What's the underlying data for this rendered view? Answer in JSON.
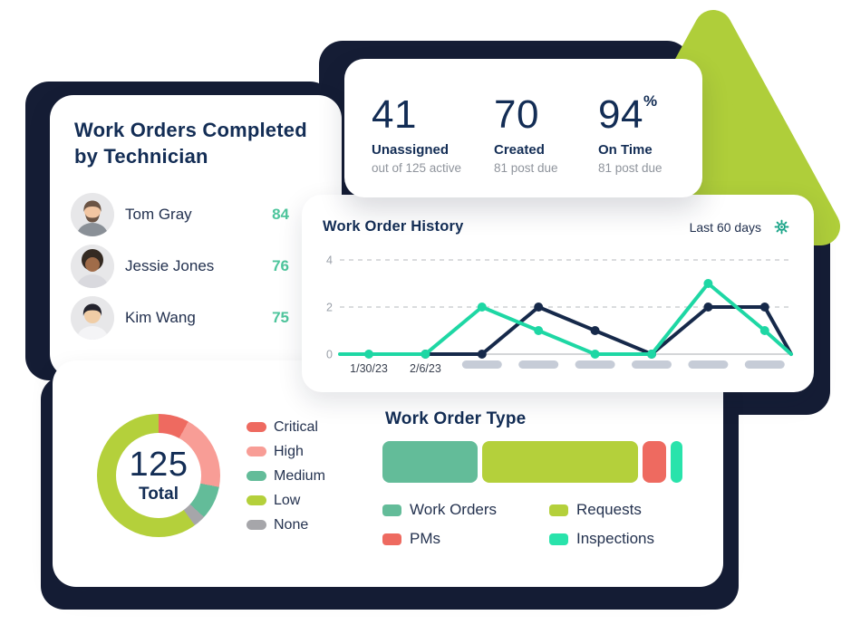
{
  "page": {
    "background": "#ffffff"
  },
  "colors": {
    "navy_text": "#132d55",
    "navy_shape": "#151d35",
    "lime": "#afce3a",
    "teal_line": "#1ed7a4",
    "navy_line": "#16294a",
    "green_value": "#4ec59c",
    "gear_teal": "#16a386"
  },
  "technician_card": {
    "title": "Work Orders Completed by Technician",
    "rows": [
      {
        "name": "Tom Gray",
        "value": "84",
        "avatar": "avatar-tom-gray"
      },
      {
        "name": "Jessie Jones",
        "value": "76",
        "avatar": "avatar-jessie-jones"
      },
      {
        "name": "Kim Wang",
        "value": "75",
        "avatar": "avatar-kim-wang"
      }
    ]
  },
  "stats_card": {
    "stats": [
      {
        "value": "41",
        "suffix": "",
        "label": "Unassigned",
        "sub": "out of 125 active"
      },
      {
        "value": "70",
        "suffix": "",
        "label": "Created",
        "sub": "81 post due"
      },
      {
        "value": "94",
        "suffix": "%",
        "label": "On Time",
        "sub": "81 post due"
      }
    ]
  },
  "history_card": {
    "range_label": "Last 60 days"
  },
  "chart_data": [
    {
      "type": "line",
      "title": "Work Order History",
      "x_labels": [
        "1/30/23",
        "2/6/23",
        "",
        "",
        "",
        "",
        "",
        ""
      ],
      "placeholder_tick_indices": [
        2,
        3,
        4,
        5,
        6,
        7
      ],
      "yticks": [
        0,
        2,
        4
      ],
      "ylim": [
        0,
        4
      ],
      "grid": "dashed-horizontal",
      "series": [
        {
          "name": "series-navy",
          "color": "#16294a",
          "values": [
            null,
            0,
            0,
            2,
            1,
            0,
            2,
            2,
            0
          ]
        },
        {
          "name": "series-teal",
          "color": "#1ed7a4",
          "values": [
            0,
            0,
            2,
            1,
            0,
            0,
            3,
            1,
            0
          ]
        }
      ],
      "pill_color": "#c6ccd7",
      "axis_color": "#c6c8cc",
      "gridline_color": "#cdd0d4",
      "ytick_label_color": "#9aa0a9",
      "xtick_label_color": "#39404f"
    },
    {
      "type": "pie",
      "subtype": "donut",
      "center_value": "125",
      "center_label": "Total",
      "slices": [
        {
          "label": "Critical",
          "value": 10,
          "color": "#ee6a60"
        },
        {
          "label": "High",
          "value": 25,
          "color": "#f89d96"
        },
        {
          "label": "Medium",
          "value": 11,
          "color": "#63bc99"
        },
        {
          "label": "None",
          "value": 4,
          "color": "#a6a6aa"
        },
        {
          "label": "Low",
          "value": 75,
          "color": "#b4d03b"
        }
      ],
      "legend_order": [
        "Critical",
        "High",
        "Medium",
        "Low",
        "None"
      ],
      "legend_position": "right"
    },
    {
      "type": "bar",
      "subtype": "stacked-horizontal",
      "title": "Work Order Type",
      "segments": [
        {
          "label": "Work Orders",
          "value": 40,
          "color": "#63bc99"
        },
        {
          "label": "Requests",
          "value": 65,
          "color": "#b4d03b"
        },
        {
          "label": "PMs",
          "value": 10,
          "color": "#ee6a60"
        },
        {
          "label": "Inspections",
          "value": 5,
          "color": "#29e3ab"
        }
      ],
      "legend_order": [
        "Work Orders",
        "Requests",
        "PMs",
        "Inspections"
      ],
      "legend_position": "bottom"
    }
  ]
}
